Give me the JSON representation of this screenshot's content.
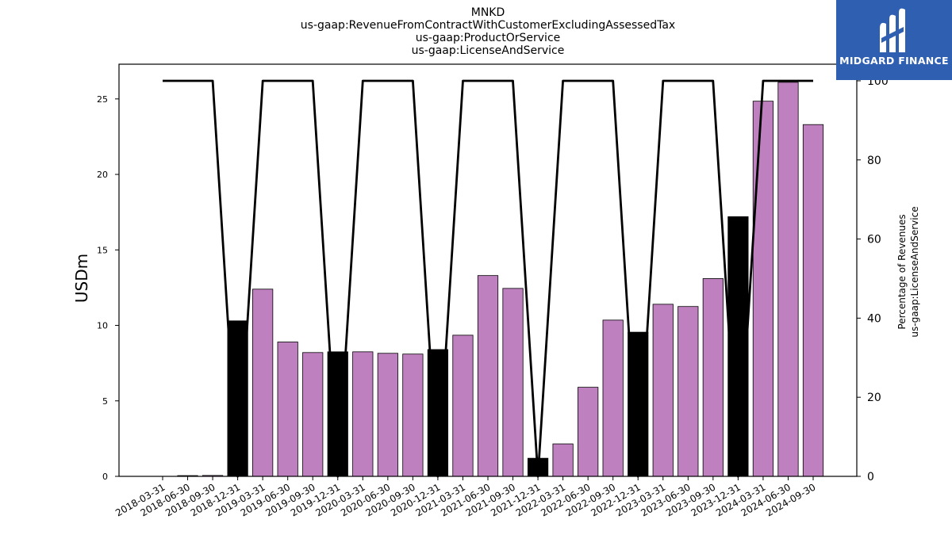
{
  "titles": [
    "MNKD",
    "us-gaap:RevenueFromContractWithCustomerExcludingAssessedTax",
    "us-gaap:ProductOrService",
    "us-gaap:LicenseAndService"
  ],
  "logo": {
    "text": "MIDGARD FINANCE",
    "color": "#2e5fb0"
  },
  "chart_data": {
    "type": "bar",
    "ylabel": "USDm",
    "y2label_lines": [
      "Percentage of Revenues",
      "us-gaap:LicenseAndService"
    ],
    "ylim": [
      0,
      27.3
    ],
    "y2lim": [
      0,
      104.2
    ],
    "yticks": [
      0,
      5,
      10,
      15,
      20,
      25
    ],
    "y2ticks": [
      0,
      20,
      40,
      60,
      80,
      100
    ],
    "grid": false,
    "categories": [
      "2018-03-31",
      "2018-06-30",
      "2018-09-30",
      "2018-12-31",
      "2019-03-31",
      "2019-06-30",
      "2019-09-30",
      "2019-12-31",
      "2020-03-31",
      "2020-06-30",
      "2020-09-30",
      "2020-12-31",
      "2021-03-31",
      "2021-06-30",
      "2021-09-30",
      "2021-12-31",
      "2022-03-31",
      "2022-06-30",
      "2022-09-30",
      "2022-12-31",
      "2023-03-31",
      "2023-06-30",
      "2023-09-30",
      "2023-12-31",
      "2024-03-31",
      "2024-06-30",
      "2024-09-30"
    ],
    "series": [
      {
        "kind": "bar",
        "axis": "left",
        "values": [
          0.0,
          0.05,
          0.06,
          10.3,
          12.4,
          8.9,
          8.2,
          8.25,
          8.25,
          8.15,
          8.1,
          8.4,
          9.35,
          13.3,
          12.45,
          1.2,
          2.15,
          5.9,
          10.35,
          9.55,
          11.4,
          11.25,
          13.1,
          17.2,
          24.85,
          26.1,
          23.3
        ],
        "colors": [
          "#bf80bf",
          "#bf80bf",
          "#bf80bf",
          "#000000",
          "#bf80bf",
          "#bf80bf",
          "#bf80bf",
          "#000000",
          "#bf80bf",
          "#bf80bf",
          "#bf80bf",
          "#000000",
          "#bf80bf",
          "#bf80bf",
          "#bf80bf",
          "#000000",
          "#bf80bf",
          "#bf80bf",
          "#bf80bf",
          "#000000",
          "#bf80bf",
          "#bf80bf",
          "#bf80bf",
          "#000000",
          "#bf80bf",
          "#bf80bf",
          "#bf80bf"
        ]
      },
      {
        "kind": "line",
        "axis": "right",
        "color": "#000000",
        "values": [
          100,
          100,
          100,
          0,
          100,
          100,
          100,
          0,
          100,
          100,
          100,
          0,
          100,
          100,
          100,
          0,
          100,
          100,
          100,
          0,
          100,
          100,
          100,
          0,
          100,
          100,
          100
        ]
      }
    ]
  }
}
